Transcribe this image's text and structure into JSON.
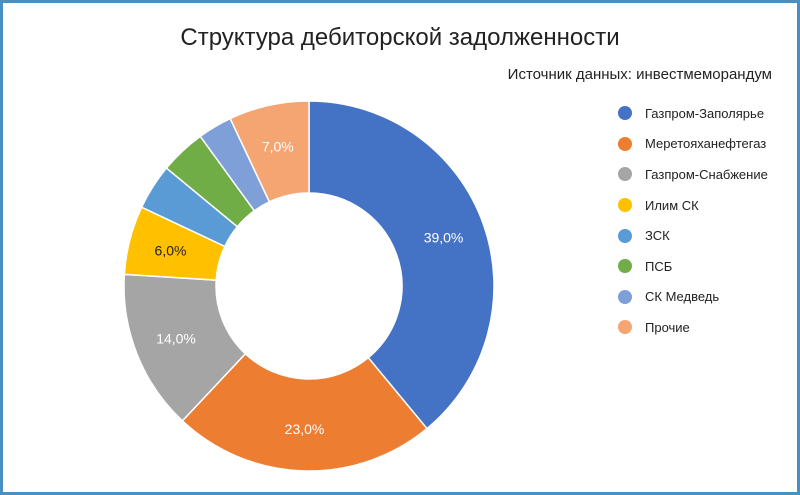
{
  "chart_data": {
    "type": "pie",
    "donut": true,
    "title": "Структура дебиторской задолженности",
    "subtitle": "Источник данных: инвестмеморандум",
    "legend_position": "right",
    "categories": [
      "Газпром-Заполярье",
      "Меретояханефтегаз",
      "Газпром-Снабжение",
      "Илим СК",
      "ЗСК",
      "ПСБ",
      "СК Медведь",
      "Прочие"
    ],
    "values": [
      39.0,
      23.0,
      14.0,
      6.0,
      4.0,
      4.0,
      3.0,
      7.0
    ],
    "labels": [
      "39,0%",
      "23,0%",
      "14,0%",
      "6,0%",
      "",
      "",
      "",
      "7,0%"
    ],
    "colors": [
      "#4472c4",
      "#ed7d31",
      "#a5a5a5",
      "#ffc000",
      "#5b9bd5",
      "#70ad47",
      "#7f9fd8",
      "#f4a572"
    ],
    "label_colors": [
      "#ffffff",
      "#ffffff",
      "#ffffff",
      "#222222",
      "#ffffff",
      "#ffffff",
      "#ffffff",
      "#ffffff"
    ]
  }
}
